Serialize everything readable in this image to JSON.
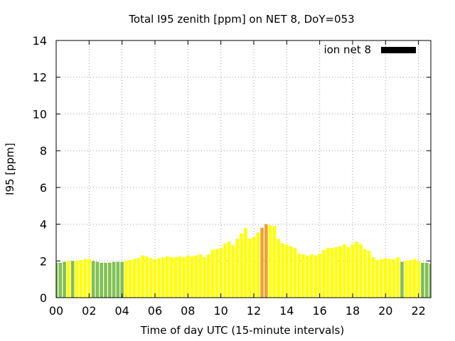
{
  "chart_data": {
    "type": "bar",
    "title": "Total I95 zenith [ppm] on NET 8, DoY=053",
    "xlabel": "Time of day UTC (15-minute intervals)",
    "ylabel": "I95 [ppm]",
    "xlim": [
      0,
      22.75
    ],
    "ylim": [
      0,
      14
    ],
    "interval_hours": 0.25,
    "xticks": [
      0,
      2,
      4,
      6,
      8,
      10,
      12,
      14,
      16,
      18,
      20,
      22
    ],
    "xtick_labels": [
      "00",
      "02",
      "04",
      "06",
      "08",
      "10",
      "12",
      "14",
      "16",
      "18",
      "20",
      "22"
    ],
    "yticks": [
      0,
      2,
      4,
      6,
      8,
      10,
      12,
      14
    ],
    "ytick_labels": [
      "0",
      "2",
      "4",
      "6",
      "8",
      "10",
      "12",
      "14"
    ],
    "grid": true,
    "legend": {
      "label": "ion net 8",
      "position": "top-right",
      "color": "#000000"
    },
    "colors": {
      "green": "#80c050",
      "yellow": "#ffff00",
      "orange": "#f0a030"
    },
    "series": [
      {
        "values": [
          1.9,
          1.9,
          1.95,
          2.0,
          2.0,
          2.0,
          2.05,
          2.1,
          2.1,
          2.0,
          1.95,
          1.9,
          1.9,
          1.9,
          1.95,
          1.95,
          1.95,
          2.0,
          2.05,
          2.1,
          2.15,
          2.3,
          2.25,
          2.15,
          2.1,
          2.15,
          2.2,
          2.25,
          2.2,
          2.2,
          2.25,
          2.2,
          2.3,
          2.25,
          2.3,
          2.35,
          2.2,
          2.35,
          2.6,
          2.65,
          2.7,
          2.95,
          3.05,
          2.85,
          3.2,
          3.5,
          3.8,
          3.2,
          3.3,
          3.55,
          3.8,
          4.0,
          3.95,
          3.9,
          3.2,
          2.95,
          2.9,
          2.8,
          2.7,
          2.4,
          2.35,
          2.3,
          2.35,
          2.3,
          2.4,
          2.6,
          2.7,
          2.7,
          2.75,
          2.8,
          2.9,
          2.75,
          2.9,
          3.05,
          2.9,
          2.65,
          2.55,
          2.2,
          2.05,
          2.1,
          2.15,
          2.1,
          2.1,
          2.2,
          1.95,
          2.0,
          2.05,
          2.1,
          2.0,
          1.9,
          1.9,
          1.85
        ],
        "colors": [
          "green",
          "green",
          "green",
          "yellow",
          "green",
          "yellow",
          "yellow",
          "yellow",
          "yellow",
          "green",
          "green",
          "green",
          "green",
          "green",
          "green",
          "green",
          "green",
          "yellow",
          "yellow",
          "yellow",
          "yellow",
          "yellow",
          "yellow",
          "yellow",
          "yellow",
          "yellow",
          "yellow",
          "yellow",
          "yellow",
          "yellow",
          "yellow",
          "yellow",
          "yellow",
          "yellow",
          "yellow",
          "yellow",
          "yellow",
          "yellow",
          "yellow",
          "yellow",
          "yellow",
          "yellow",
          "yellow",
          "yellow",
          "yellow",
          "yellow",
          "yellow",
          "yellow",
          "yellow",
          "yellow",
          "orange",
          "orange",
          "yellow",
          "yellow",
          "yellow",
          "yellow",
          "yellow",
          "yellow",
          "yellow",
          "yellow",
          "yellow",
          "yellow",
          "yellow",
          "yellow",
          "yellow",
          "yellow",
          "yellow",
          "yellow",
          "yellow",
          "yellow",
          "yellow",
          "yellow",
          "yellow",
          "yellow",
          "yellow",
          "yellow",
          "yellow",
          "yellow",
          "yellow",
          "yellow",
          "yellow",
          "yellow",
          "yellow",
          "yellow",
          "green",
          "yellow",
          "yellow",
          "yellow",
          "yellow",
          "green",
          "green",
          "green"
        ]
      }
    ]
  }
}
